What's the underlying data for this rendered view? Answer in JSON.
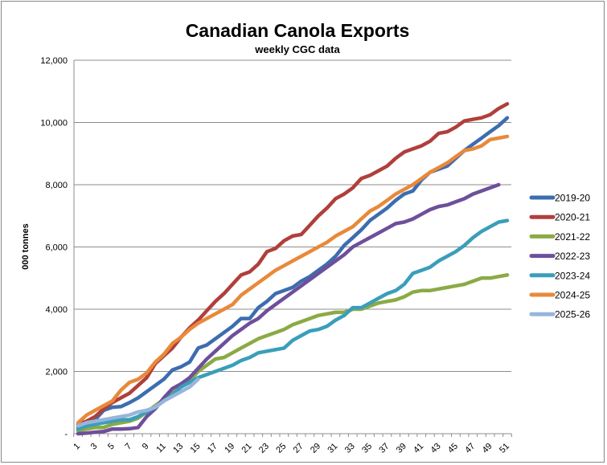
{
  "chart_data": {
    "type": "line",
    "title": "Canadian Canola Exports",
    "subtitle": "weekly CGC data",
    "xlabel": "",
    "ylabel": "000 tonnes",
    "ylim": [
      0,
      12000
    ],
    "yticks": [
      0,
      2000,
      4000,
      6000,
      8000,
      10000,
      12000
    ],
    "ytick_labels": [
      "-",
      "2,000",
      "4,000",
      "6,000",
      "8,000",
      "10,000",
      "12,000"
    ],
    "xlim": [
      1,
      51
    ],
    "xtick_labels": [
      "1",
      "3",
      "5",
      "7",
      "9",
      "11",
      "13",
      "15",
      "17",
      "19",
      "21",
      "23",
      "25",
      "27",
      "29",
      "31",
      "33",
      "35",
      "37",
      "39",
      "41",
      "43",
      "45",
      "47",
      "49",
      "51"
    ],
    "grid": "horizontal",
    "legend_position": "right",
    "series": [
      {
        "name": "2019-20",
        "color": "#3D6DB0",
        "values": [
          200,
          320,
          450,
          750,
          850,
          870,
          1000,
          1150,
          1350,
          1550,
          1750,
          2050,
          2150,
          2300,
          2750,
          2850,
          3050,
          3250,
          3450,
          3700,
          3700,
          4050,
          4250,
          4500,
          4600,
          4700,
          4900,
          5050,
          5250,
          5450,
          5700,
          6050,
          6300,
          6550,
          6850,
          7050,
          7250,
          7500,
          7700,
          7800,
          8150,
          8400,
          8500,
          8600,
          8850,
          9100,
          9300,
          9500,
          9700,
          9900,
          10150
        ]
      },
      {
        "name": "2020-21",
        "color": "#B03F3B",
        "values": [
          300,
          400,
          550,
          800,
          1000,
          1150,
          1300,
          1550,
          1800,
          2250,
          2500,
          2750,
          3100,
          3400,
          3650,
          3950,
          4250,
          4500,
          4800,
          5100,
          5200,
          5450,
          5850,
          5950,
          6200,
          6350,
          6400,
          6700,
          7000,
          7250,
          7550,
          7700,
          7900,
          8200,
          8300,
          8450,
          8600,
          8850,
          9050,
          9150,
          9250,
          9400,
          9650,
          9700,
          9850,
          10050,
          10100,
          10150,
          10250,
          10450,
          10600
        ]
      },
      {
        "name": "2021-22",
        "color": "#8BAA45",
        "values": [
          100,
          150,
          200,
          200,
          300,
          350,
          400,
          500,
          700,
          900,
          1100,
          1300,
          1500,
          1700,
          2000,
          2200,
          2400,
          2450,
          2600,
          2750,
          2900,
          3050,
          3150,
          3250,
          3350,
          3500,
          3600,
          3700,
          3800,
          3850,
          3900,
          3900,
          4000,
          4000,
          4100,
          4200,
          4250,
          4300,
          4400,
          4550,
          4600,
          4600,
          4650,
          4700,
          4750,
          4800,
          4900,
          5000,
          5000,
          5050,
          5100
        ]
      },
      {
        "name": "2022-23",
        "color": "#6E4F9B",
        "values": [
          0,
          20,
          50,
          70,
          150,
          150,
          160,
          200,
          550,
          800,
          1150,
          1450,
          1600,
          1800,
          2100,
          2400,
          2650,
          2900,
          3150,
          3350,
          3550,
          3700,
          3950,
          4150,
          4350,
          4550,
          4750,
          4950,
          5150,
          5350,
          5550,
          5750,
          6000,
          6150,
          6300,
          6450,
          6600,
          6750,
          6800,
          6900,
          7050,
          7200,
          7300,
          7350,
          7450,
          7550,
          7700,
          7800,
          7900,
          8000
        ]
      },
      {
        "name": "2023-24",
        "color": "#3A9EBA",
        "values": [
          150,
          250,
          300,
          350,
          400,
          450,
          450,
          550,
          700,
          850,
          1050,
          1250,
          1500,
          1650,
          1800,
          1900,
          2000,
          2100,
          2200,
          2350,
          2450,
          2600,
          2650,
          2700,
          2750,
          3000,
          3150,
          3300,
          3350,
          3450,
          3650,
          3800,
          4050,
          4050,
          4200,
          4350,
          4500,
          4600,
          4800,
          5150,
          5250,
          5350,
          5550,
          5700,
          5850,
          6050,
          6300,
          6500,
          6650,
          6800,
          6850
        ]
      },
      {
        "name": "2024-25",
        "color": "#E8893A",
        "values": [
          350,
          600,
          750,
          900,
          1050,
          1400,
          1650,
          1750,
          1950,
          2300,
          2550,
          2900,
          3100,
          3350,
          3550,
          3700,
          3850,
          4000,
          4150,
          4450,
          4650,
          4850,
          5050,
          5250,
          5400,
          5550,
          5700,
          5850,
          6000,
          6150,
          6350,
          6500,
          6650,
          6900,
          7150,
          7300,
          7500,
          7700,
          7850,
          8000,
          8200,
          8400,
          8550,
          8700,
          8900,
          9100,
          9150,
          9250,
          9450,
          9500,
          9550
        ]
      },
      {
        "name": "2025-26",
        "color": "#98B5DC",
        "values": [
          250,
          350,
          400,
          450,
          500,
          550,
          600,
          700,
          750,
          850,
          1050,
          1200,
          1350,
          1500,
          1750
        ]
      }
    ]
  }
}
